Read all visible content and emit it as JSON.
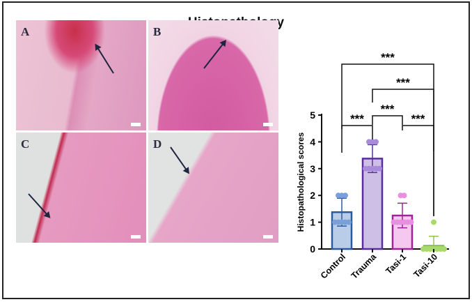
{
  "title": "Histopathology",
  "panels": [
    {
      "label": "A"
    },
    {
      "label": "B"
    },
    {
      "label": "C"
    },
    {
      "label": "D"
    }
  ],
  "chart_data": {
    "type": "bar",
    "ylabel": "Histopathological scores",
    "xlabel": "",
    "ylim": [
      0,
      5
    ],
    "yticks": [
      "0",
      "1",
      "2",
      "3",
      "4",
      "5"
    ],
    "categories": [
      "Control",
      "Trauma",
      "Tasi-1",
      "Tasi-10"
    ],
    "values": [
      1.375,
      3.375,
      1.25,
      0.125
    ],
    "sd": [
      0.52,
      0.52,
      0.46,
      0.35
    ],
    "points": [
      [
        2,
        2,
        2,
        1,
        1,
        1,
        1,
        1
      ],
      [
        4,
        4,
        4,
        3,
        3,
        3,
        3,
        3
      ],
      [
        2,
        2,
        1,
        1,
        1,
        1,
        1,
        1
      ],
      [
        1,
        0,
        0,
        0,
        0,
        0,
        0,
        0
      ]
    ],
    "colors": {
      "fill": [
        "#b9cde9",
        "#cdbfe6",
        "#f4c8ef",
        "#cde8a6"
      ],
      "stroke": [
        "#2d5a9c",
        "#5a2d9c",
        "#a1239b",
        "#8fc553"
      ],
      "point": [
        "#7b9fd9",
        "#a88bd9",
        "#e98fe2",
        "#a9d96c"
      ]
    },
    "significance": [
      {
        "from": "Control",
        "to": "Trauma",
        "label": "***"
      },
      {
        "from": "Tasi-1",
        "to": "Tasi-10",
        "label": "***"
      },
      {
        "from": "Trauma",
        "to": "Tasi-1",
        "label": "***"
      },
      {
        "from": "Trauma",
        "to": "Tasi-10",
        "label": "***"
      },
      {
        "from": "Control",
        "to": "Tasi-10",
        "label": "***"
      }
    ]
  }
}
